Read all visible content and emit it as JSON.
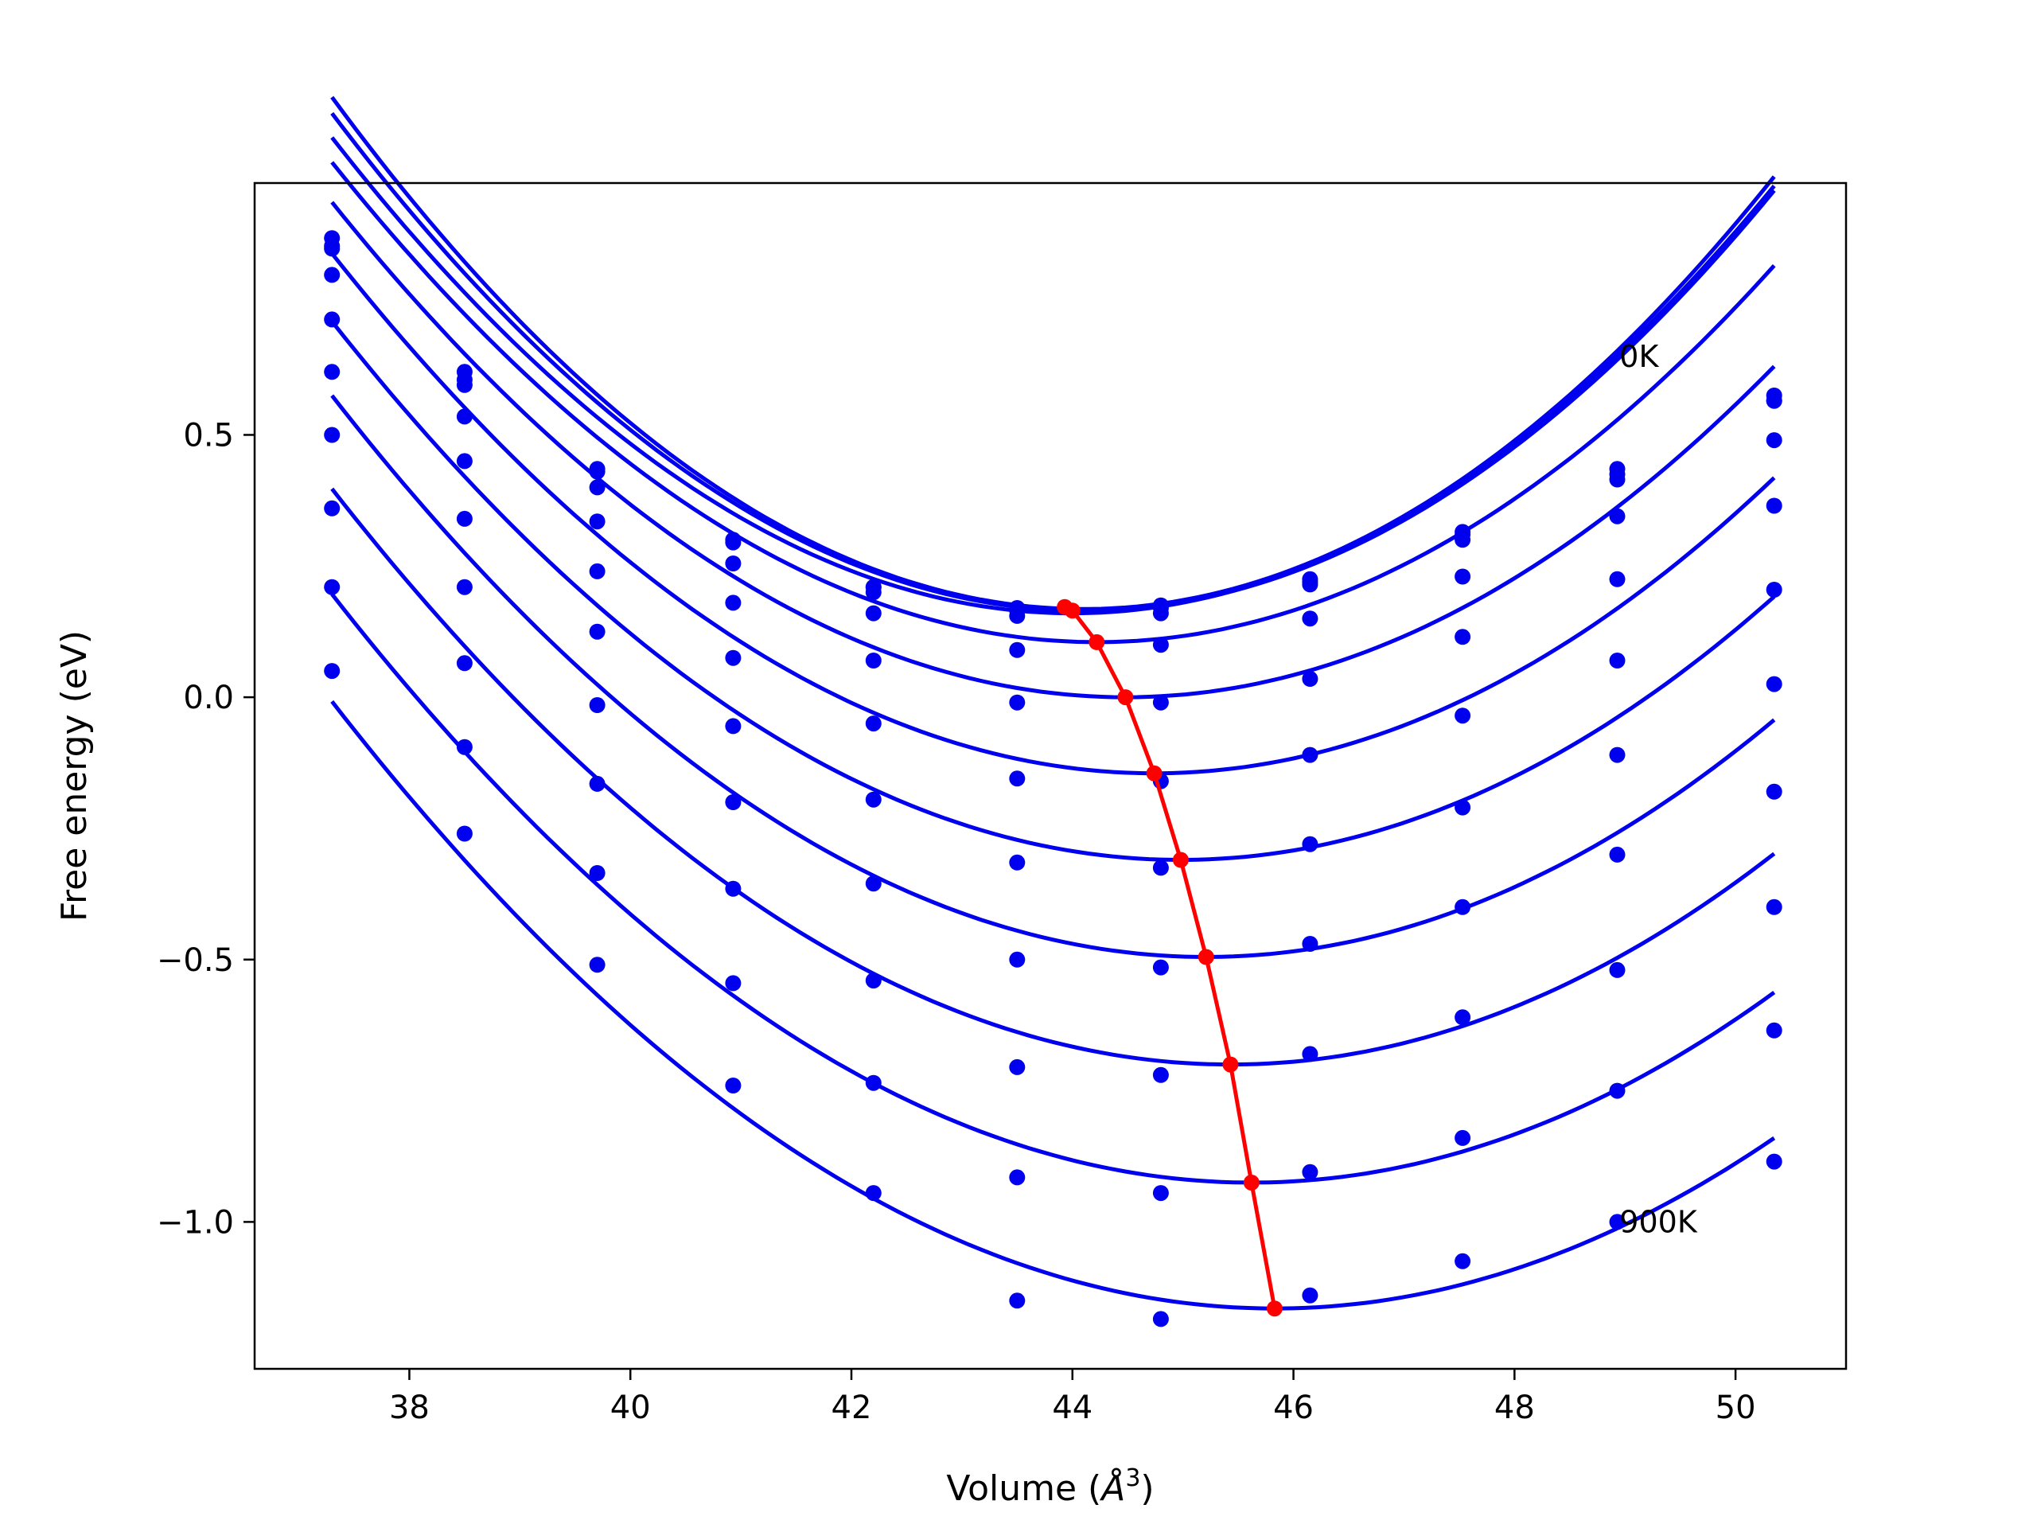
{
  "chart_data": {
    "type": "line",
    "title": "",
    "xlabel_prefix": "Volume (",
    "xlabel_unit": "Å",
    "xlabel_exp": "3",
    "xlabel_suffix": ")",
    "ylabel": "Free energy (eV)",
    "xlim": [
      36.6,
      51.0
    ],
    "ylim": [
      -1.28,
      0.98
    ],
    "xticks": [
      38,
      40,
      42,
      44,
      46,
      48,
      50
    ],
    "xtick_labels": [
      "38",
      "40",
      "42",
      "44",
      "46",
      "48",
      "50"
    ],
    "yticks": [
      -1.0,
      -0.5,
      0.0,
      0.5
    ],
    "ytick_labels": [
      "−1.0",
      "−0.5",
      "0.0",
      "0.5"
    ],
    "grid": false,
    "annotations": [
      {
        "text": "0K",
        "x": 48.95,
        "y": 0.63
      },
      {
        "text": "900K",
        "x": 48.95,
        "y": -1.02
      }
    ],
    "colors": {
      "curves": "#0000ee",
      "minima": "#ff0000",
      "points": "#0000ee"
    },
    "volumes": [
      37.3,
      38.5,
      39.7,
      40.93,
      42.2,
      43.5,
      44.8,
      46.15,
      47.53,
      48.93,
      50.35
    ],
    "series": [
      {
        "fit": {
          "c": 0.168,
          "v0": 44.1,
          "a": 0.0211
        },
        "points": [
          0.875,
          0.62,
          0.435,
          0.3,
          0.21,
          0.17,
          0.175,
          0.225,
          0.315,
          0.435,
          0.575
        ]
      },
      {
        "fit": {
          "c": 0.165,
          "v0": 44.1,
          "a": 0.0205
        },
        "points": [
          0.86,
          0.605,
          0.43,
          0.295,
          0.21,
          0.165,
          0.17,
          0.22,
          0.31,
          0.425,
          0.565
        ]
      },
      {
        "fit": {
          "c": 0.16,
          "v0": 44.0,
          "a": 0.0202
        },
        "points": [
          0.855,
          0.595,
          0.4,
          0.255,
          0.2,
          0.155,
          0.16,
          0.215,
          0.3,
          0.415,
          0.565
        ]
      },
      {
        "fit": {
          "c": 0.105,
          "v0": 44.22,
          "a": 0.0191
        },
        "points": [
          0.805,
          0.535,
          0.335,
          0.18,
          0.16,
          0.09,
          0.1,
          0.15,
          0.23,
          0.345,
          0.49
        ]
      },
      {
        "fit": {
          "c": 0.0,
          "v0": 44.48,
          "a": 0.0183
        },
        "points": [
          0.72,
          0.45,
          0.24,
          0.075,
          0.07,
          -0.01,
          -0.01,
          0.035,
          0.115,
          0.225,
          0.365
        ]
      },
      {
        "fit": {
          "c": -0.145,
          "v0": 44.74,
          "a": 0.0179
        },
        "points": [
          0.62,
          0.34,
          0.125,
          -0.055,
          -0.05,
          -0.155,
          -0.16,
          -0.11,
          -0.035,
          0.07,
          0.205
        ]
      },
      {
        "fit": {
          "c": -0.31,
          "v0": 44.98,
          "a": 0.0174
        },
        "points": [
          0.5,
          0.21,
          -0.015,
          -0.2,
          -0.195,
          -0.315,
          -0.325,
          -0.28,
          -0.21,
          -0.11,
          0.025
        ]
      },
      {
        "fit": {
          "c": -0.495,
          "v0": 45.21,
          "a": 0.0171
        },
        "points": [
          0.36,
          0.065,
          -0.165,
          -0.365,
          -0.355,
          -0.5,
          -0.515,
          -0.47,
          -0.4,
          -0.3,
          -0.18
        ]
      },
      {
        "fit": {
          "c": -0.7,
          "v0": 45.43,
          "a": 0.0166
        },
        "points": [
          0.21,
          -0.095,
          -0.335,
          -0.545,
          -0.54,
          -0.705,
          -0.72,
          -0.68,
          -0.61,
          -0.52,
          -0.4
        ]
      },
      {
        "fit": {
          "c": -0.925,
          "v0": 45.62,
          "a": 0.0162
        },
        "points": [
          0.05,
          -0.26,
          -0.51,
          -0.74,
          -0.735,
          -0.915,
          -0.945,
          -0.905,
          -0.84,
          -0.75,
          -0.635
        ]
      },
      {
        "fit": {
          "c": -1.165,
          "v0": 45.83,
          "a": 0.0159
        },
        "points": [
          null,
          null,
          null,
          null,
          -0.945,
          -1.15,
          -1.185,
          -1.14,
          -1.075,
          -1.0,
          -0.885
        ]
      }
    ],
    "minima": {
      "x": [
        43.93,
        44.0,
        44.22,
        44.48,
        44.74,
        44.98,
        45.21,
        45.43,
        45.62,
        45.83
      ],
      "y": [
        0.172,
        0.165,
        0.105,
        0.0,
        -0.145,
        -0.31,
        -0.495,
        -0.7,
        -0.925,
        -1.165
      ]
    }
  }
}
